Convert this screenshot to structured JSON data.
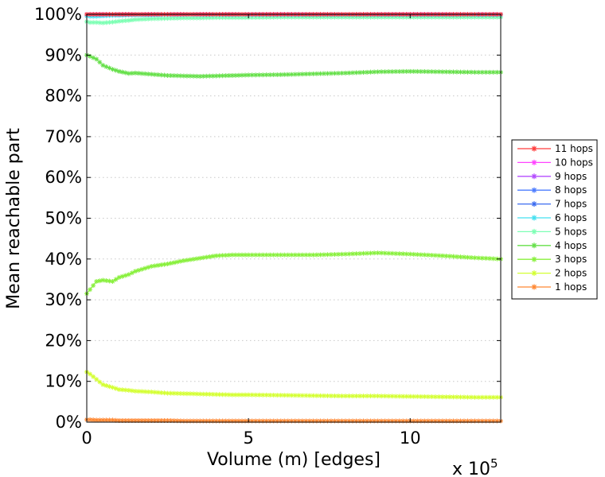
{
  "chart_data": {
    "type": "line",
    "title": "",
    "xlabel": "Volume (m) [edges]",
    "ylabel": "Mean reachable part",
    "x_exponent_label": {
      "base": "x 10",
      "exp": "5"
    },
    "xlim": [
      0,
      12.8
    ],
    "ylim": [
      0,
      100
    ],
    "x_ticks": [
      0,
      5,
      10
    ],
    "x_tick_labels": [
      "0",
      "5",
      "10"
    ],
    "y_ticks": [
      0,
      10,
      20,
      30,
      40,
      50,
      60,
      70,
      80,
      90,
      100
    ],
    "y_tick_labels": [
      "0%",
      "10%",
      "20%",
      "30%",
      "40%",
      "50%",
      "60%",
      "70%",
      "80%",
      "90%",
      "100%"
    ],
    "grid": "horizontal-dotted",
    "legend_position": "right",
    "x": [
      0,
      0.1,
      0.3,
      0.5,
      0.8,
      1.0,
      1.3,
      1.5,
      2.0,
      2.5,
      3.0,
      3.5,
      4.0,
      4.5,
      5.0,
      6.0,
      7.0,
      8.0,
      9.0,
      10.0,
      11.0,
      12.0,
      12.8
    ],
    "series": [
      {
        "name": "11 hops",
        "color": "#ff3c3c",
        "values": [
          100,
          100,
          100,
          100,
          100,
          100,
          100,
          100,
          100,
          100,
          100,
          100,
          100,
          100,
          100,
          100,
          100,
          100,
          100,
          100,
          100,
          100,
          100
        ]
      },
      {
        "name": "10 hops",
        "color": "#ff44ff",
        "values": [
          100,
          100,
          100,
          100,
          100,
          100,
          100,
          100,
          100,
          100,
          100,
          100,
          100,
          100,
          100,
          100,
          100,
          100,
          100,
          100,
          100,
          100,
          100
        ]
      },
      {
        "name": "9 hops",
        "color": "#b44dff",
        "values": [
          100,
          100,
          100,
          100,
          100,
          100,
          100,
          100,
          100,
          100,
          100,
          100,
          100,
          100,
          100,
          100,
          100,
          100,
          100,
          100,
          100,
          100,
          100
        ]
      },
      {
        "name": "8 hops",
        "color": "#4d7dff",
        "values": [
          100,
          100,
          100,
          100,
          100,
          100,
          100,
          100,
          100,
          100,
          100,
          100,
          100,
          100,
          100,
          100,
          100,
          100,
          100,
          100,
          100,
          100,
          100
        ]
      },
      {
        "name": "7 hops",
        "color": "#3c6cf0",
        "values": [
          100,
          100,
          100,
          100,
          100,
          100,
          100,
          100,
          100,
          100,
          100,
          100,
          100,
          100,
          100,
          100,
          100,
          100,
          100,
          100,
          100,
          100,
          100
        ]
      },
      {
        "name": "6 hops",
        "color": "#44e0f0",
        "values": [
          99.6,
          99.5,
          99.5,
          99.6,
          99.7,
          99.7,
          99.8,
          99.8,
          99.8,
          99.9,
          99.9,
          99.9,
          99.9,
          99.9,
          99.9,
          99.9,
          99.9,
          99.9,
          99.9,
          99.9,
          99.9,
          99.9,
          99.9
        ]
      },
      {
        "name": "5 hops",
        "color": "#7dffb4",
        "values": [
          98.2,
          98.0,
          98.0,
          97.9,
          98.1,
          98.3,
          98.5,
          98.7,
          98.9,
          99.0,
          99.1,
          99.1,
          99.2,
          99.2,
          99.2,
          99.3,
          99.3,
          99.3,
          99.3,
          99.3,
          99.3,
          99.3,
          99.3
        ]
      },
      {
        "name": "4 hops",
        "color": "#66e04a",
        "values": [
          90.0,
          89.7,
          89.0,
          87.5,
          86.5,
          86.0,
          85.5,
          85.6,
          85.3,
          85.0,
          84.9,
          84.8,
          84.9,
          85.0,
          85.1,
          85.2,
          85.4,
          85.6,
          85.9,
          86.0,
          85.9,
          85.8,
          85.8
        ]
      },
      {
        "name": "3 hops",
        "color": "#88f03c",
        "values": [
          31.5,
          32.5,
          34.5,
          34.8,
          34.5,
          35.5,
          36.2,
          37.0,
          38.2,
          38.8,
          39.6,
          40.2,
          40.8,
          41.0,
          41.0,
          41.0,
          41.0,
          41.2,
          41.5,
          41.2,
          40.8,
          40.3,
          40.0
        ]
      },
      {
        "name": "2 hops",
        "color": "#d4ff33",
        "values": [
          12.3,
          11.8,
          10.5,
          9.2,
          8.5,
          8.0,
          7.8,
          7.6,
          7.4,
          7.1,
          7.0,
          6.9,
          6.8,
          6.7,
          6.7,
          6.6,
          6.5,
          6.4,
          6.4,
          6.3,
          6.2,
          6.1,
          6.1
        ]
      },
      {
        "name": "1 hops",
        "color": "#ff8833",
        "values": [
          0.6,
          0.6,
          0.5,
          0.5,
          0.5,
          0.4,
          0.4,
          0.4,
          0.4,
          0.4,
          0.3,
          0.3,
          0.3,
          0.3,
          0.3,
          0.3,
          0.3,
          0.3,
          0.3,
          0.3,
          0.3,
          0.3,
          0.3
        ]
      }
    ]
  }
}
